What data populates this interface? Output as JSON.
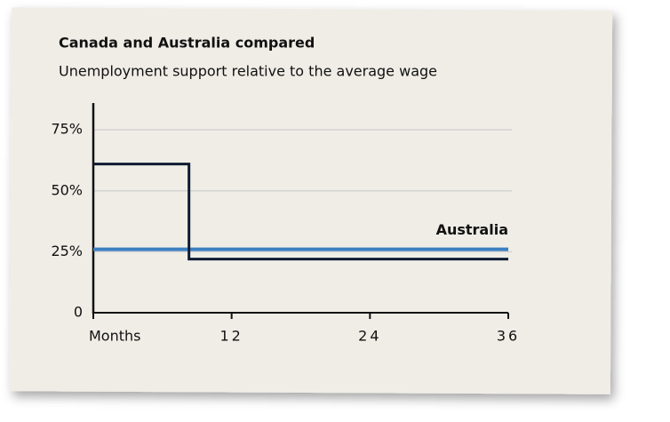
{
  "chart_data": {
    "type": "line",
    "title": "Canada and Australia compared",
    "subtitle": "Unemployment support relative to the average wage",
    "x": [
      0,
      8.3,
      8.3,
      36
    ],
    "series": [
      {
        "color": "#0f1a33",
        "values": [
          61,
          61,
          22,
          22
        ]
      },
      {
        "name": "Australia",
        "color": "#3d7fc1",
        "values": [
          26,
          26,
          26,
          26
        ]
      }
    ],
    "xlim": [
      0,
      36
    ],
    "xticks": [
      {
        "value": 0,
        "label": "Months"
      },
      12,
      24,
      36
    ],
    "ylim": [
      0,
      86
    ],
    "yticks": [
      0,
      {
        "value": 25,
        "label": "25%"
      },
      {
        "value": 50,
        "label": "50%"
      },
      {
        "value": 75,
        "label": "75%"
      }
    ],
    "grid": true
  }
}
